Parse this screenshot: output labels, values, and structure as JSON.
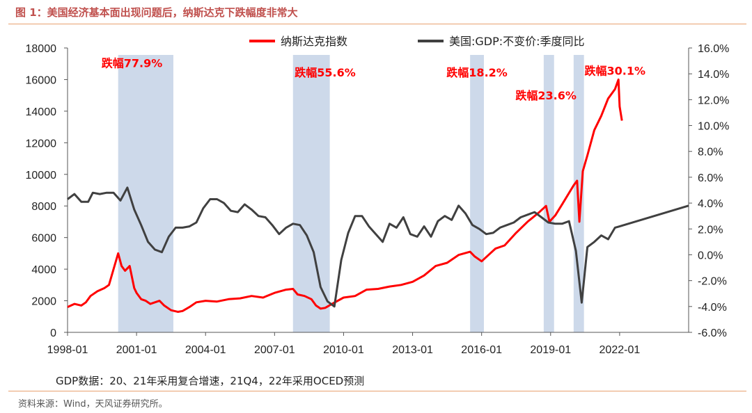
{
  "page": {
    "title": "图 1：美国经济基本面出现问题后，纳斯达克下跌幅度非常大",
    "note": "GDP数据：20、21年采用复合增速，21Q4，22年采用OCED预测",
    "source": "资料来源：Wind，天风证券研究所。"
  },
  "colors": {
    "nasdaq": "#ff0000",
    "gdp": "#404040",
    "shade": "#cdd9ea",
    "drawdown_text": "#ff0000",
    "title": "#c0504d",
    "rule": "#e8a06f"
  },
  "chart_data": {
    "type": "line",
    "title": "",
    "x_ticks": [
      "1998-01",
      "2001-01",
      "2004-01",
      "2007-01",
      "2010-01",
      "2013-01",
      "2016-01",
      "2019-01",
      "2022-01"
    ],
    "x_range": [
      1998.0,
      2025.0
    ],
    "y_left": {
      "min": 0,
      "max": 18000,
      "ticks": [
        "0",
        "2000",
        "4000",
        "6000",
        "8000",
        "10000",
        "12000",
        "14000",
        "16000",
        "18000"
      ]
    },
    "y_right": {
      "min": -6,
      "max": 16,
      "unit": "%",
      "ticks": [
        "-6.0%",
        "-4.0%",
        "-2.0%",
        "0.0%",
        "2.0%",
        "4.0%",
        "6.0%",
        "8.0%",
        "10.0%",
        "12.0%",
        "14.0%",
        "16.0%"
      ]
    },
    "legend": [
      {
        "name": "纳斯达克指数",
        "axis": "left",
        "color": "#ff0000"
      },
      {
        "name": "美国:GDP:不变价:季度同比",
        "axis": "right",
        "color": "#404040"
      }
    ],
    "shaded_periods": [
      {
        "start": 2000.2,
        "end": 2002.6
      },
      {
        "start": 2007.8,
        "end": 2009.4
      },
      {
        "start": 2015.5,
        "end": 2016.1
      },
      {
        "start": 2018.7,
        "end": 2019.15
      },
      {
        "start": 2020.0,
        "end": 2020.45
      }
    ],
    "annotations": [
      {
        "text": "跌幅77.9%",
        "x": 2000.8,
        "y_left": 16800
      },
      {
        "text": "跌幅55.6%",
        "x": 2009.2,
        "y_left": 16200
      },
      {
        "text": "跌幅18.2%",
        "x": 2015.8,
        "y_left": 16200
      },
      {
        "text": "跌幅23.6%",
        "x": 2018.8,
        "y_left": 14750
      },
      {
        "text": "跌幅30.1%",
        "x": 2021.8,
        "y_left": 16300
      }
    ],
    "series": [
      {
        "name": "纳斯达克指数",
        "axis": "left",
        "x": [
          1998.0,
          1998.3,
          1998.6,
          1998.8,
          1999.0,
          1999.3,
          1999.6,
          1999.8,
          2000.0,
          2000.2,
          2000.35,
          2000.5,
          2000.7,
          2000.9,
          2001.0,
          2001.2,
          2001.4,
          2001.6,
          2001.8,
          2002.0,
          2002.2,
          2002.5,
          2002.8,
          2003.0,
          2003.3,
          2003.6,
          2004.0,
          2004.5,
          2005.0,
          2005.5,
          2006.0,
          2006.5,
          2007.0,
          2007.5,
          2007.8,
          2008.0,
          2008.3,
          2008.6,
          2008.8,
          2009.0,
          2009.2,
          2009.5,
          2010.0,
          2010.5,
          2011.0,
          2011.5,
          2012.0,
          2012.5,
          2013.0,
          2013.5,
          2014.0,
          2014.5,
          2015.0,
          2015.5,
          2015.7,
          2016.0,
          2016.3,
          2016.6,
          2017.0,
          2017.5,
          2018.0,
          2018.5,
          2018.8,
          2018.95,
          2019.2,
          2019.5,
          2020.0,
          2020.15,
          2020.25,
          2020.4,
          2020.6,
          2020.9,
          2021.2,
          2021.5,
          2021.8,
          2021.95,
          2022.0,
          2022.1
        ],
        "values": [
          1600,
          1800,
          1700,
          1900,
          2300,
          2600,
          2800,
          3000,
          4000,
          5000,
          4200,
          3900,
          4200,
          2800,
          2500,
          2100,
          2000,
          1800,
          1900,
          2000,
          1700,
          1400,
          1300,
          1350,
          1600,
          1900,
          2000,
          1950,
          2100,
          2150,
          2300,
          2200,
          2500,
          2700,
          2750,
          2400,
          2300,
          2100,
          1700,
          1500,
          1550,
          1800,
          2200,
          2300,
          2700,
          2750,
          2900,
          3000,
          3200,
          3600,
          4200,
          4400,
          4900,
          5100,
          4800,
          4500,
          4900,
          5300,
          5500,
          6300,
          7000,
          7600,
          8000,
          7000,
          7400,
          8100,
          9300,
          9600,
          7000,
          10200,
          11200,
          12800,
          13700,
          14800,
          15400,
          16000,
          14300,
          13400
        ]
      },
      {
        "name": "美国:GDP:不变价:季度同比",
        "axis": "right",
        "x": [
          1998.0,
          1998.3,
          1998.6,
          1998.9,
          1999.1,
          1999.4,
          1999.7,
          2000.0,
          2000.3,
          2000.6,
          2000.9,
          2001.2,
          2001.5,
          2001.8,
          2002.1,
          2002.4,
          2002.7,
          2003.0,
          2003.3,
          2003.6,
          2003.9,
          2004.2,
          2004.5,
          2004.8,
          2005.1,
          2005.4,
          2005.7,
          2006.0,
          2006.3,
          2006.6,
          2006.9,
          2007.2,
          2007.5,
          2007.8,
          2008.1,
          2008.4,
          2008.7,
          2009.0,
          2009.3,
          2009.6,
          2009.9,
          2010.2,
          2010.5,
          2010.8,
          2011.1,
          2011.4,
          2011.7,
          2012.0,
          2012.3,
          2012.6,
          2012.9,
          2013.2,
          2013.5,
          2013.8,
          2014.1,
          2014.4,
          2014.7,
          2015.0,
          2015.3,
          2015.6,
          2015.9,
          2016.2,
          2016.5,
          2016.8,
          2017.1,
          2017.4,
          2017.7,
          2018.0,
          2018.3,
          2018.6,
          2018.9,
          2019.2,
          2019.5,
          2019.8,
          2020.1,
          2020.35,
          2020.6,
          2020.9,
          2021.2,
          2021.5,
          2021.8,
          2022.0,
          2025.0
        ],
        "values": [
          4.3,
          4.7,
          4.1,
          4.1,
          4.8,
          4.7,
          4.8,
          4.8,
          4.2,
          5.2,
          3.5,
          2.3,
          1.0,
          0.4,
          0.2,
          1.4,
          2.1,
          2.1,
          2.2,
          2.5,
          3.6,
          4.3,
          4.3,
          4.0,
          3.4,
          3.3,
          3.9,
          3.5,
          3.0,
          2.9,
          2.3,
          1.6,
          2.1,
          2.4,
          2.3,
          1.5,
          0.2,
          -2.5,
          -3.6,
          -4.0,
          -0.4,
          1.7,
          3.0,
          3.0,
          2.2,
          1.6,
          1.0,
          2.4,
          2.1,
          2.9,
          1.6,
          1.4,
          2.2,
          1.4,
          2.6,
          3.0,
          2.7,
          3.8,
          3.2,
          2.3,
          2.0,
          1.6,
          1.7,
          2.1,
          2.3,
          2.5,
          2.9,
          3.1,
          3.3,
          2.9,
          2.5,
          2.4,
          2.4,
          2.6,
          0.3,
          -3.7,
          0.6,
          1.0,
          1.5,
          1.2,
          2.1,
          2.2,
          3.8
        ]
      }
    ]
  }
}
